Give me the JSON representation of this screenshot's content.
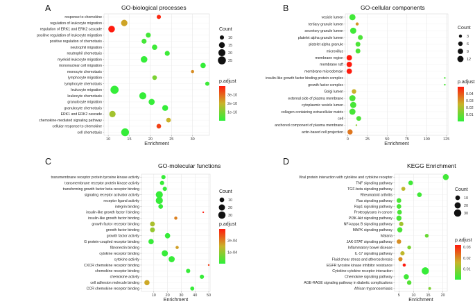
{
  "chart_data": [
    {
      "type": "scatter",
      "panel": "A",
      "title": "GO-biological processes",
      "xlabel": "Enrichment",
      "xlim": [
        9,
        34
      ],
      "xticks": [
        10,
        15,
        20,
        25,
        30
      ],
      "count_ticks": [
        10,
        15,
        20,
        25
      ],
      "count_range": [
        7,
        27
      ],
      "padj_range": [
        0,
        4e-10
      ],
      "padj_ticks": [
        {
          "v": 3e-10,
          "label": "3e-10"
        },
        {
          "v": 2e-10,
          "label": "2e-10"
        },
        {
          "v": 1e-10,
          "label": "1e-10"
        }
      ],
      "count_title": "Count",
      "padj_title": "p.adjust",
      "categories": [
        "response to chemokine",
        "regulation of leukocyte migration",
        "regulation of ERK1 and ERK2 cascade",
        "positive regulation of leukocyte migration",
        "positive regulation of chemotaxis",
        "neutrophil migration",
        "neutrophil chemotaxis",
        "myeloid leukocyte migration",
        "mononuclear cell migration",
        "monocyte chemotaxis",
        "lymphocyte migration",
        "lymphocyte chemotaxis",
        "leukocyte migration",
        "leukocyte chemotaxis",
        "granulocyte migration",
        "granulocyte chemotaxis",
        "ERK1 and ERK2 cascade",
        "chemokine-mediated signaling pathway",
        "cellular response to chemokine",
        "cell chemotaxis"
      ],
      "points": [
        {
          "x": 22,
          "count": 10,
          "padj": 3.8e-10
        },
        {
          "x": 13.8,
          "count": 17,
          "padj": 2.2e-10
        },
        {
          "x": 10.8,
          "count": 18,
          "padj": 4e-10
        },
        {
          "x": 19.5,
          "count": 12,
          "padj": 3e-11
        },
        {
          "x": 18.5,
          "count": 12,
          "padj": 3e-11
        },
        {
          "x": 21,
          "count": 13,
          "padj": 2e-11
        },
        {
          "x": 24,
          "count": 12,
          "padj": 2e-11
        },
        {
          "x": 18.5,
          "count": 18,
          "padj": 1e-11
        },
        {
          "x": 32.5,
          "count": 13,
          "padj": 1e-11
        },
        {
          "x": 30,
          "count": 8,
          "padj": 2.5e-10
        },
        {
          "x": 21,
          "count": 11,
          "padj": 1e-10
        },
        {
          "x": 33.5,
          "count": 10,
          "padj": 2e-11
        },
        {
          "x": 11.5,
          "count": 26,
          "padj": 1e-11
        },
        {
          "x": 18.2,
          "count": 20,
          "padj": 1e-11
        },
        {
          "x": 20.3,
          "count": 16,
          "padj": 1e-11
        },
        {
          "x": 23.5,
          "count": 15,
          "padj": 1e-11
        },
        {
          "x": 11,
          "count": 17,
          "padj": 1.5e-10
        },
        {
          "x": 24.3,
          "count": 11,
          "padj": 2e-10
        },
        {
          "x": 22,
          "count": 11,
          "padj": 3.5e-10
        },
        {
          "x": 14,
          "count": 24,
          "padj": 1e-11
        }
      ]
    },
    {
      "type": "scatter",
      "panel": "B",
      "title": "GO-cellular components",
      "xlabel": "Enrichment",
      "xlim": [
        -3,
        127
      ],
      "xticks": [
        0,
        25,
        50,
        75,
        100,
        125
      ],
      "count_ticks": [
        3,
        6,
        9,
        12
      ],
      "count_range": [
        2,
        13
      ],
      "padj_range": [
        0,
        0.05
      ],
      "padj_ticks": [
        {
          "v": 0.04,
          "label": "0.04"
        },
        {
          "v": 0.03,
          "label": "0.03"
        },
        {
          "v": 0.02,
          "label": "0.02"
        },
        {
          "v": 0.01,
          "label": "0.01"
        }
      ],
      "count_title": "Count",
      "padj_title": "p.adjust",
      "categories": [
        "vesicle lumen",
        "tertiary granule lumen",
        "secretory granule lumen",
        "platelet alpha granule lumen",
        "platelet alpha granule",
        "microvillus",
        "membrane region",
        "membrane raft",
        "membrane microdomain",
        "insulin-like growth factor binding protein complex",
        "growth factor complex",
        "Golgi lumen",
        "external side of plasma membrane",
        "cytoplasmic vesicle lumen",
        "collagen-containing extracellular matrix",
        "cell",
        "anchored component of plasma membrane",
        "actin-based cell projection"
      ],
      "points": [
        {
          "x": 6,
          "count": 12,
          "padj": 0.003
        },
        {
          "x": 12,
          "count": 3,
          "padj": 0.03
        },
        {
          "x": 7,
          "count": 12,
          "padj": 0.003
        },
        {
          "x": 16,
          "count": 7,
          "padj": 0.005
        },
        {
          "x": 13,
          "count": 7,
          "padj": 0.005
        },
        {
          "x": 13,
          "count": 7,
          "padj": 0.005
        },
        {
          "x": 2,
          "count": 9,
          "padj": 0.05
        },
        {
          "x": 2,
          "count": 9,
          "padj": 0.05
        },
        {
          "x": 2,
          "count": 9,
          "padj": 0.05
        },
        {
          "x": 123,
          "count": 2,
          "padj": 0.005
        },
        {
          "x": 123,
          "count": 2,
          "padj": 0.005
        },
        {
          "x": 8,
          "count": 6,
          "padj": 0.025
        },
        {
          "x": 6,
          "count": 12,
          "padj": 0.005
        },
        {
          "x": 7,
          "count": 12,
          "padj": 0.004
        },
        {
          "x": 6,
          "count": 12,
          "padj": 0.004
        },
        {
          "x": 14,
          "count": 7,
          "padj": 0.005
        },
        {
          "x": 11,
          "count": 2,
          "padj": 0.015
        },
        {
          "x": 3,
          "count": 8,
          "padj": 0.035
        }
      ]
    },
    {
      "type": "scatter",
      "panel": "C",
      "title": "GO-molecular functions",
      "xlabel": "Enrichment",
      "xlim": [
        1,
        51
      ],
      "xticks": [
        10,
        20,
        30,
        40,
        50
      ],
      "count_ticks": [
        10,
        20,
        30
      ],
      "count_range": [
        2,
        35
      ],
      "padj_range": [
        0,
        0.0003
      ],
      "padj_ticks": [
        {
          "v": 0.0002,
          "label": "2e-04"
        },
        {
          "v": 0.0001,
          "label": "1e-04"
        }
      ],
      "count_title": "Count",
      "padj_title": "p.adjust",
      "categories": [
        "transmembrane receptor protein tyrosine kinase activity",
        "transmembrane receptor protein kinase activity",
        "transforming growth factor beta receptor binding",
        "signaling receptor activator activity",
        "receptor ligand activity",
        "integrin binding",
        "insulin-like growth factor I binding",
        "insulin-like growth factor binding",
        "growth factor receptor binding",
        "growth factor binding",
        "growth factor activity",
        "G protein-coupled receptor binding",
        "fibronectin binding",
        "cytokine receptor binding",
        "cytokine activity",
        "CXCR chemokine receptor binding",
        "chemokine receptor binding",
        "chemokine activity",
        "cell adhesion molecule binding",
        "CCR chemokine receptor binding"
      ],
      "points": [
        {
          "x": 17,
          "count": 8,
          "padj": 1e-05
        },
        {
          "x": 16,
          "count": 8,
          "padj": 1e-05
        },
        {
          "x": 18,
          "count": 8,
          "padj": 1e-05
        },
        {
          "x": 14,
          "count": 28,
          "padj": 1e-05
        },
        {
          "x": 14,
          "count": 28,
          "padj": 1e-05
        },
        {
          "x": 15,
          "count": 10,
          "padj": 1e-05
        },
        {
          "x": 46,
          "count": 2,
          "padj": 0.0003
        },
        {
          "x": 26,
          "count": 4,
          "padj": 0.0002
        },
        {
          "x": 9,
          "count": 11,
          "padj": 0.00012
        },
        {
          "x": 9,
          "count": 11,
          "padj": 0.0001
        },
        {
          "x": 20,
          "count": 14,
          "padj": 1e-05
        },
        {
          "x": 8,
          "count": 14,
          "padj": 1e-05
        },
        {
          "x": 27,
          "count": 4,
          "padj": 0.00017
        },
        {
          "x": 18,
          "count": 20,
          "padj": 1e-05
        },
        {
          "x": 23,
          "count": 20,
          "padj": 1e-05
        },
        {
          "x": 50,
          "count": 2,
          "padj": 0.00027
        },
        {
          "x": 35,
          "count": 8,
          "padj": 1e-05
        },
        {
          "x": 45,
          "count": 8,
          "padj": 1e-05
        },
        {
          "x": 5,
          "count": 13,
          "padj": 0.00016
        },
        {
          "x": 38,
          "count": 7,
          "padj": 1e-05
        }
      ]
    },
    {
      "type": "scatter",
      "panel": "D",
      "title": "KEGG Enrichment",
      "xlabel": "Enrichment",
      "xlim": [
        3.5,
        21.5
      ],
      "xticks": [
        5,
        10,
        15,
        20
      ],
      "count_ticks": [
        10,
        20,
        30
      ],
      "count_range": [
        2,
        35
      ],
      "padj_range": [
        0,
        0.032
      ],
      "padj_ticks": [
        {
          "v": 0.03,
          "label": "0.03"
        },
        {
          "v": 0.02,
          "label": "0.02"
        },
        {
          "v": 0.01,
          "label": "0.01"
        }
      ],
      "count_title": "Count",
      "padj_title": "p.adjust",
      "categories": [
        "Viral protein interaction with cytokine and cytokine receptor",
        "TNF signaling pathway",
        "TGF-beta signaling pathway",
        "Rheumatoid arthritis",
        "Ras signaling pathway",
        "Rap1 signaling pathway",
        "Proteoglycans in cancer",
        "PI3K-Akt signaling pathway",
        "NF-kappa B signaling pathway",
        "MAPK signaling pathway",
        "Malaria",
        "JAK-STAT signaling pathway",
        "Inflammatory bowel disease",
        "IL-17 signaling pathway",
        "Fluid shear stress and atherosclerosis",
        "EGFR tyrosine kinase inhibitor resistance",
        "Cytokine-cytokine receptor interaction",
        "Chemokine signaling pathway",
        "AGE-RAGE signaling pathway in diabetic complications",
        "African trypanosomiasis"
      ],
      "points": [
        {
          "x": 21,
          "count": 18,
          "padj": 0.002
        },
        {
          "x": 9,
          "count": 10,
          "padj": 0.002
        },
        {
          "x": 6.5,
          "count": 7,
          "padj": 0.015
        },
        {
          "x": 12,
          "count": 10,
          "padj": 0.002
        },
        {
          "x": 5,
          "count": 10,
          "padj": 0.003
        },
        {
          "x": 5,
          "count": 10,
          "padj": 0.003
        },
        {
          "x": 5.2,
          "count": 10,
          "padj": 0.003
        },
        {
          "x": 5,
          "count": 13,
          "padj": 0.003
        },
        {
          "x": 5.8,
          "count": 8,
          "padj": 0.012
        },
        {
          "x": 5.3,
          "count": 13,
          "padj": 0.003
        },
        {
          "x": 14.5,
          "count": 6,
          "padj": 0.006
        },
        {
          "x": 5,
          "count": 9,
          "padj": 0.02
        },
        {
          "x": 8.5,
          "count": 6,
          "padj": 0.008
        },
        {
          "x": 6.2,
          "count": 8,
          "padj": 0.015
        },
        {
          "x": 5.5,
          "count": 8,
          "padj": 0.02
        },
        {
          "x": 6.8,
          "count": 4,
          "padj": 0.032
        },
        {
          "x": 14,
          "count": 30,
          "padj": 0.001
        },
        {
          "x": 7.5,
          "count": 13,
          "padj": 0.002
        },
        {
          "x": 8.5,
          "count": 9,
          "padj": 0.004
        },
        {
          "x": 15.5,
          "count": 3,
          "padj": 0.008
        }
      ]
    }
  ]
}
